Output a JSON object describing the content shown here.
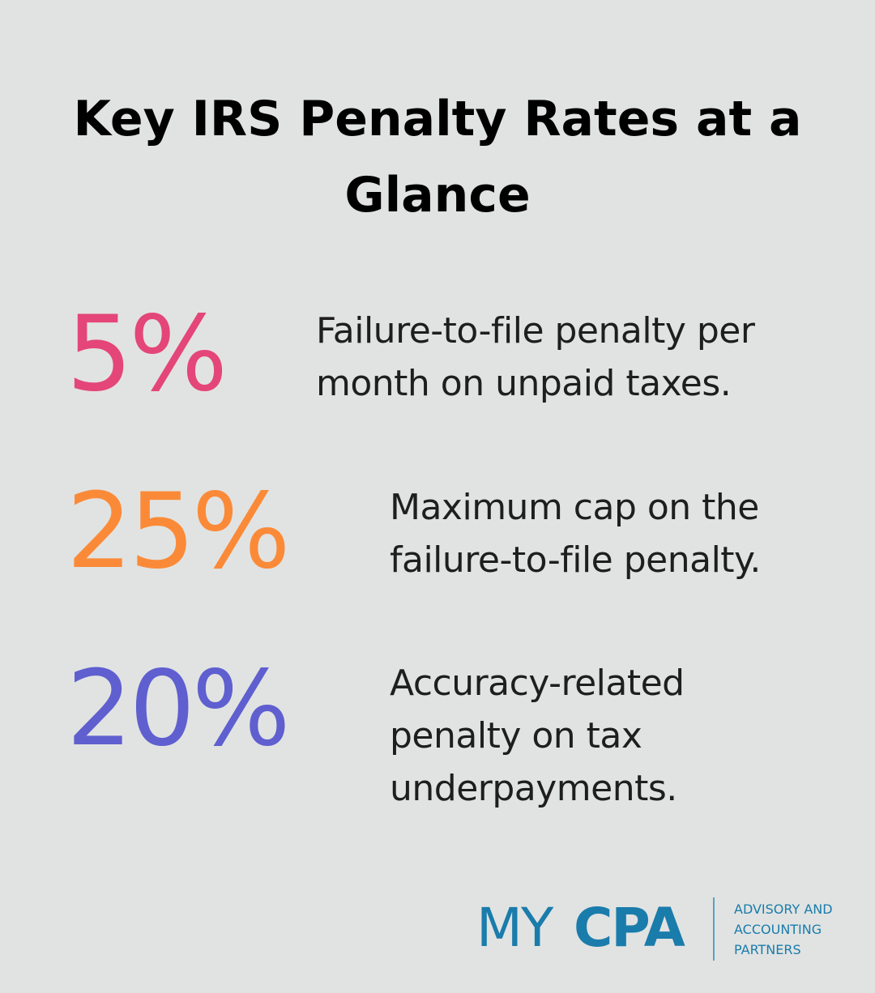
{
  "title": "Key IRS Penalty Rates at a Glance",
  "stats": [
    {
      "value": "5%",
      "description": "Failure-to-file penalty per month on unpaid taxes.",
      "color": "#e44679"
    },
    {
      "value": "25%",
      "description": "Maximum cap on the failure-to-file penalty.",
      "color": "#fb8a38"
    },
    {
      "value": "20%",
      "description": "Accuracy-related penalty on tax underpayments.",
      "color": "#5f5fd0"
    }
  ],
  "logo": {
    "part1": "MY",
    "part2": "CPA",
    "tagline": "ADVISORY AND\nACCOUNTING\nPARTNERS",
    "color": "#1a7cab"
  },
  "background_color": "#e1e3e2"
}
